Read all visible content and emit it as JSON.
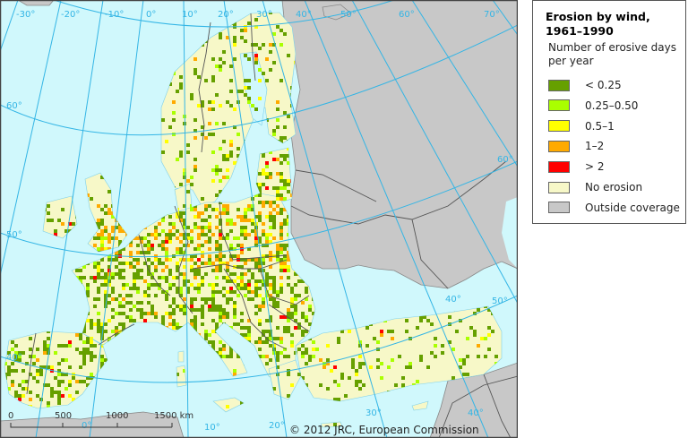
{
  "legend": {
    "title": "Erosion by wind, 1961–1990",
    "subtitle": "Number of erosive days per year",
    "items": [
      {
        "label": "< 0.25",
        "color": "#66a000"
      },
      {
        "label": "0.25–0.50",
        "color": "#aaff00"
      },
      {
        "label": "0.5–1",
        "color": "#ffff00"
      },
      {
        "label": "1–2",
        "color": "#ffaa00"
      },
      {
        "label": "> 2",
        "color": "#ff0000"
      },
      {
        "label": "No erosion",
        "color": "#f7f8c8"
      },
      {
        "label": "Outside coverage",
        "color": "#c8c8c8"
      }
    ]
  },
  "map": {
    "sea_color": "#d0f8fc",
    "graticule_color": "#33b5e5",
    "meridian_labels": [
      "-30°",
      "-20°",
      "-10°",
      "0°",
      "10°",
      "20°",
      "30°",
      "40°",
      "50°",
      "60°",
      "70°"
    ],
    "parallel_labels": [
      "60°",
      "50°",
      "40°"
    ],
    "bottom_meridian_labels": [
      "0°",
      "10°",
      "20°",
      "30°",
      "40°"
    ],
    "right_parallel_labels": [
      "60°",
      "50°",
      "40°"
    ],
    "scale_bar": {
      "ticks": [
        "0",
        "500",
        "1000",
        "1500 km"
      ]
    },
    "copyright": "© 2012 JRC, European Commission"
  }
}
